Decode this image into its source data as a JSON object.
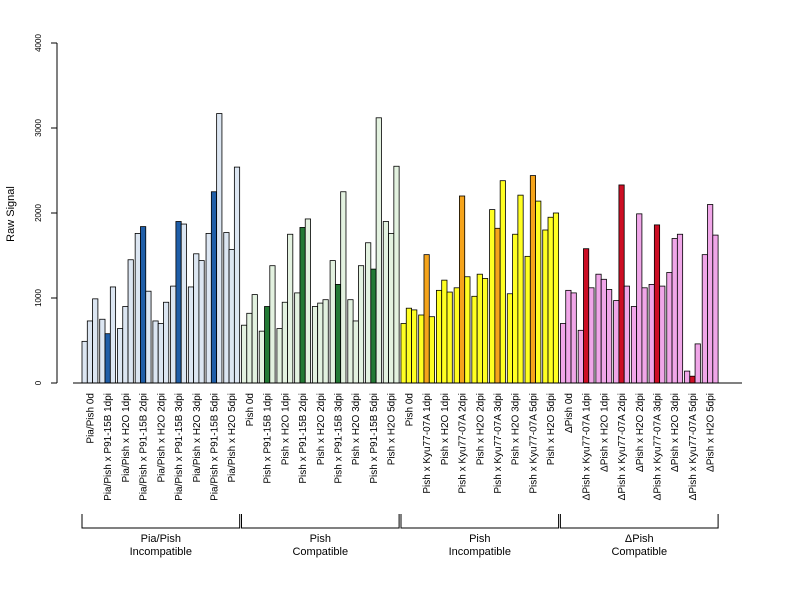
{
  "chart_data": {
    "type": "bar",
    "ylabel": "Raw Signal",
    "ylim": [
      0,
      4000
    ],
    "yticks": [
      0,
      1000,
      2000,
      3000,
      4000
    ],
    "grid": false,
    "legend": "none",
    "categories": [
      "Pia/Pish 0d",
      "Pia/Pish x P91-15B 1dpi",
      "Pia/Pish x H2O 1dpi",
      "Pia/Pish x P91-15B 2dpi",
      "Pia/Pish x H2O 2dpi",
      "Pia/Pish x P91-15B 3dpi",
      "Pia/Pish x H2O 3dpi",
      "Pia/Pish x P91-15B 5dpi",
      "Pia/Pish x H2O 5dpi",
      "Pish 0d",
      "Pish x P91-15B 1dpi",
      "Pish x H2O 1dpi",
      "Pish x P91-15B 2dpi",
      "Pish x H2O 2dpi",
      "Pish x P91-15B 3dpi",
      "Pish x H2O 3dpi",
      "Pish x P91-15B 5dpi",
      "Pish x H2O 5dpi",
      "Pish 0d",
      "Pish x Kyu77-07A 1dpi",
      "Pish x H2O 1dpi",
      "Pish x Kyu77-07A 2dpi",
      "Pish x H2O 2dpi",
      "Pish x Kyu77-07A 3dpi",
      "Pish x H2O 3dpi",
      "Pish x Kyu77-07A 5dpi",
      "Pish x H2O 5dpi",
      "ΔPish 0d",
      "ΔPish x Kyu77-07A 1dpi",
      "ΔPish x H2O 1dpi",
      "ΔPish x Kyu77-07A 2dpi",
      "ΔPish x H2O 2dpi",
      "ΔPish x Kyu77-07A 3dpi",
      "ΔPish x H2O 3dpi",
      "ΔPish x Kyu77-07A 5dpi",
      "ΔPish x H2O 5dpi"
    ],
    "values": [
      [
        490,
        730,
        990
      ],
      [
        750,
        580,
        1130
      ],
      [
        640,
        900,
        1450
      ],
      [
        1760,
        1840,
        1080
      ],
      [
        730,
        700,
        950
      ],
      [
        1140,
        1900,
        1870
      ],
      [
        1130,
        1520,
        1440
      ],
      [
        1760,
        2250,
        3170
      ],
      [
        1770,
        1570,
        2540
      ],
      [
        680,
        820,
        1040
      ],
      [
        610,
        900,
        1380
      ],
      [
        640,
        950,
        1750
      ],
      [
        1060,
        1830,
        1930
      ],
      [
        900,
        940,
        980
      ],
      [
        1440,
        1160,
        2250
      ],
      [
        980,
        730,
        1380
      ],
      [
        1650,
        1340,
        3120
      ],
      [
        1900,
        1760,
        2550
      ],
      [
        700,
        880,
        860
      ],
      [
        800,
        1510,
        780
      ],
      [
        1090,
        1210,
        1070
      ],
      [
        1120,
        2200,
        1250
      ],
      [
        1020,
        1280,
        1230
      ],
      [
        2040,
        1820,
        2380
      ],
      [
        1050,
        1750,
        2210
      ],
      [
        1490,
        2440,
        2140
      ],
      [
        1800,
        1950,
        2000
      ],
      [
        700,
        1090,
        1060
      ],
      [
        620,
        1580,
        1120
      ],
      [
        1280,
        1220,
        1100
      ],
      [
        970,
        2330,
        1140
      ],
      [
        900,
        1990,
        1120
      ],
      [
        1160,
        1860,
        1140
      ],
      [
        1300,
        1700,
        1750
      ],
      [
        140,
        80,
        460
      ],
      [
        1510,
        2100,
        1740
      ]
    ],
    "group_colors": [
      [
        "#dce6f2",
        "#1f5ea8"
      ],
      [
        "#e3f2e0",
        "#237a35"
      ],
      [
        "#ffff22",
        "#f5a41b"
      ],
      [
        "#f0a6e8",
        "#cc0e24"
      ]
    ],
    "groups": [
      {
        "line1": "Pia/Pish",
        "line2": "Incompatible"
      },
      {
        "line1": "Pish",
        "line2": "Compatible"
      },
      {
        "line1": "Pish",
        "line2": "Incompatible"
      },
      {
        "line1": "ΔPish",
        "line2": "Compatible"
      }
    ]
  }
}
